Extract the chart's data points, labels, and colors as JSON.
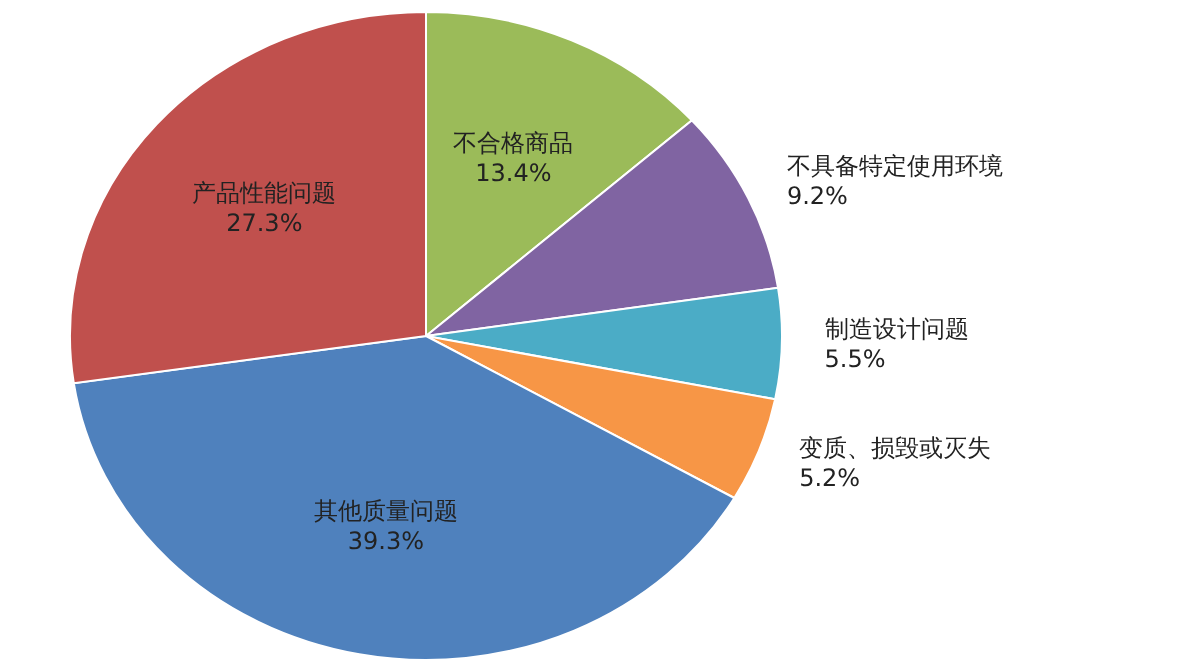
{
  "chart_data": {
    "type": "pie",
    "categories": [
      "不合格商品",
      "不具备特定使用环境",
      "制造设计问题",
      "变质、损毁或灭失",
      "其他质量问题",
      "产品性能问题"
    ],
    "values": [
      13.4,
      9.2,
      5.5,
      5.2,
      39.3,
      27.3
    ],
    "colors": [
      "#9bbb59",
      "#8064a2",
      "#4bacc6",
      "#f79646",
      "#4f81bd",
      "#c0504d"
    ],
    "value_labels": [
      "13.4%",
      "9.2%",
      "5.5%",
      "5.2%",
      "39.3%",
      "27.3%"
    ]
  }
}
